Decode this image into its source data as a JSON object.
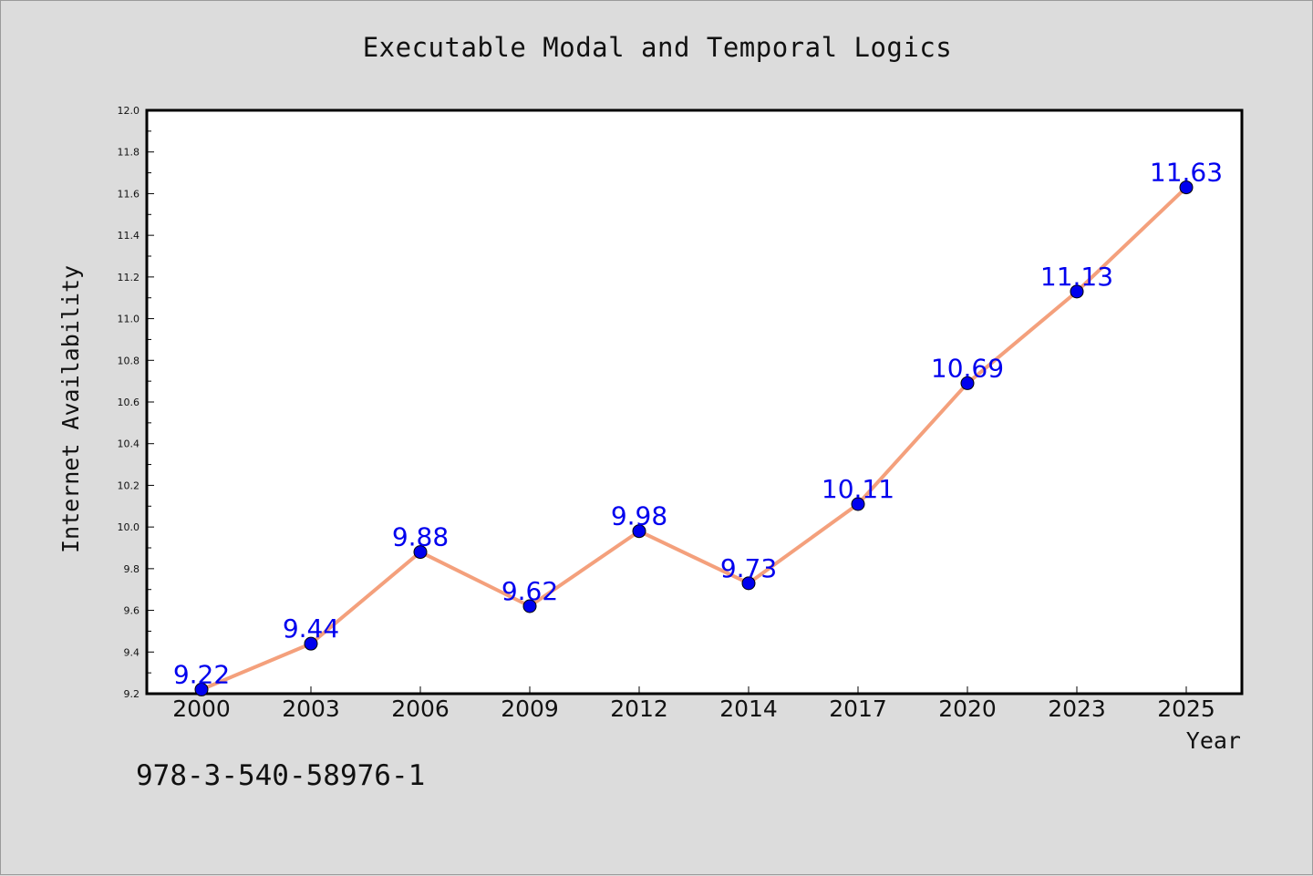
{
  "chart_data": {
    "type": "line",
    "title": "Executable Modal and Temporal Logics",
    "xlabel": "Year",
    "ylabel": "Internet Availability",
    "categories": [
      "2000",
      "2003",
      "2006",
      "2009",
      "2012",
      "2014",
      "2017",
      "2020",
      "2023",
      "2025"
    ],
    "series": [
      {
        "values": [
          9.22,
          9.44,
          9.88,
          9.62,
          9.98,
          9.73,
          10.11,
          10.69,
          11.13,
          11.63
        ],
        "labels": [
          "9.22",
          "9.44",
          "9.88",
          "9.62",
          "9.98",
          "9.73",
          "10.11",
          "10.69",
          "11.13",
          "11.63"
        ],
        "line_color": "#f4a07c",
        "marker_color": "#0000ee"
      }
    ],
    "ylim": [
      9.2,
      12.0
    ],
    "yticks": [
      "9.2",
      "9.4",
      "9.6",
      "9.8",
      "10.0",
      "10.2",
      "10.4",
      "10.6",
      "10.8",
      "11.0",
      "11.2",
      "11.4",
      "11.6",
      "11.8",
      "12.0"
    ],
    "grid": false,
    "legend": "none"
  },
  "footer": {
    "isbn": "978-3-540-58976-1"
  }
}
